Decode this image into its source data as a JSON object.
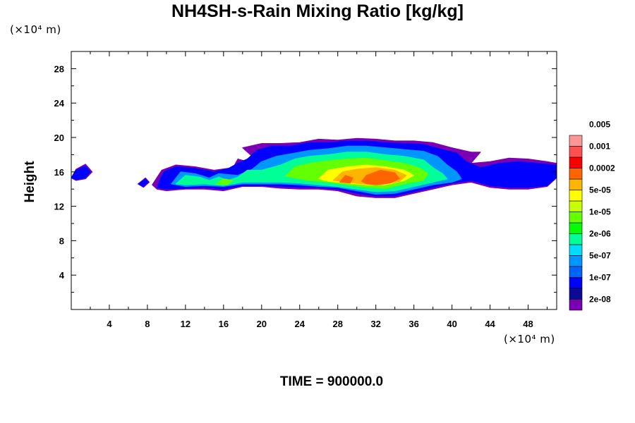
{
  "chart_data": {
    "type": "heatmap",
    "title": "NH4SH-s-Rain Mixing Ratio [kg/kg]",
    "ylabel": "Height",
    "y_unit": "(×10⁴ m)",
    "x_unit": "(×10⁴ m)",
    "footer": "TIME = 900000.0",
    "xlim": [
      0,
      51
    ],
    "ylim": [
      0,
      30
    ],
    "x_ticks": [
      "4",
      "8",
      "12",
      "16",
      "20",
      "24",
      "28",
      "32",
      "36",
      "40",
      "44",
      "48"
    ],
    "y_ticks": [
      "4",
      "8",
      "12",
      "16",
      "20",
      "24",
      "28"
    ],
    "colorbar": {
      "colors": [
        "#7b00b4",
        "#0a0a96",
        "#0000ff",
        "#0064ff",
        "#0096ff",
        "#00dcff",
        "#00ff96",
        "#00ff00",
        "#64ff00",
        "#c8ff00",
        "#ffff00",
        "#ffb400",
        "#ff6400",
        "#ff0000",
        "#ff5050",
        "#ff9696"
      ],
      "labels": [
        "2e-08",
        "1e-07",
        "5e-07",
        "2e-06",
        "1e-05",
        "5e-05",
        "0.0002",
        "0.001",
        "0.005"
      ]
    },
    "layers": [
      {
        "color": "#7b00b4",
        "level": 0,
        "polygons": [
          [
            [
              0,
              15.3
            ],
            [
              0.5,
              16.3
            ],
            [
              1.5,
              16.9
            ],
            [
              2.2,
              16.0
            ],
            [
              1.5,
              15.2
            ],
            [
              0.5,
              15.0
            ]
          ],
          [
            [
              7.0,
              14.6
            ],
            [
              7.8,
              15.3
            ],
            [
              8.2,
              14.8
            ],
            [
              7.6,
              14.2
            ]
          ],
          [
            [
              8.5,
              14.5
            ],
            [
              9.5,
              16.2
            ],
            [
              11,
              16.8
            ],
            [
              13,
              16.6
            ],
            [
              15,
              16.2
            ],
            [
              17,
              16.5
            ],
            [
              17.5,
              17.5
            ],
            [
              18.5,
              17.2
            ],
            [
              19,
              17.8
            ],
            [
              18,
              18.8
            ],
            [
              20,
              19.3
            ],
            [
              22,
              19.3
            ],
            [
              24,
              19.4
            ],
            [
              26,
              19.8
            ],
            [
              28,
              19.7
            ],
            [
              30,
              19.9
            ],
            [
              32,
              19.8
            ],
            [
              34,
              19.6
            ],
            [
              36,
              19.6
            ],
            [
              38,
              19.4
            ],
            [
              40,
              18.8
            ],
            [
              42,
              18.3
            ],
            [
              43,
              18.3
            ],
            [
              42,
              17.0
            ],
            [
              44,
              17.2
            ],
            [
              46,
              17.6
            ],
            [
              48,
              17.5
            ],
            [
              50,
              17.2
            ],
            [
              51,
              17.0
            ],
            [
              51,
              15.3
            ],
            [
              50,
              14.3
            ],
            [
              48,
              14.0
            ],
            [
              46,
              14.0
            ],
            [
              44,
              14.2
            ],
            [
              42,
              14.8
            ],
            [
              40,
              14.5
            ],
            [
              38,
              14.0
            ],
            [
              36,
              13.5
            ],
            [
              34,
              13.0
            ],
            [
              32,
              13.0
            ],
            [
              30,
              13.2
            ],
            [
              28,
              13.8
            ],
            [
              26,
              14.0
            ],
            [
              24,
              14.0
            ],
            [
              22,
              14.1
            ],
            [
              20,
              14.3
            ],
            [
              18,
              14.3
            ],
            [
              16,
              13.8
            ],
            [
              14,
              14.0
            ],
            [
              12,
              14.0
            ],
            [
              10,
              13.8
            ],
            [
              9,
              14.0
            ]
          ]
        ]
      },
      {
        "color": "#0000ff",
        "level": 2,
        "polygons": [
          [
            [
              0,
              15.3
            ],
            [
              0.5,
              16.2
            ],
            [
              1.5,
              16.7
            ],
            [
              2.0,
              16.0
            ],
            [
              1.5,
              15.3
            ],
            [
              0.5,
              15.1
            ]
          ],
          [
            [
              7.1,
              14.6
            ],
            [
              7.8,
              15.2
            ],
            [
              8.1,
              14.8
            ],
            [
              7.6,
              14.3
            ]
          ],
          [
            [
              9,
              14.2
            ],
            [
              9.7,
              16.0
            ],
            [
              11,
              16.6
            ],
            [
              13,
              16.4
            ],
            [
              15,
              16.0
            ],
            [
              16.5,
              16.4
            ],
            [
              17.5,
              17.0
            ],
            [
              18.5,
              17.5
            ],
            [
              19.5,
              18.5
            ],
            [
              21,
              19.0
            ],
            [
              23,
              19.0
            ],
            [
              25,
              19.4
            ],
            [
              27,
              19.4
            ],
            [
              29,
              19.6
            ],
            [
              31,
              19.6
            ],
            [
              33,
              19.4
            ],
            [
              35,
              19.3
            ],
            [
              37,
              19.2
            ],
            [
              39,
              18.6
            ],
            [
              40.5,
              18.2
            ],
            [
              41.5,
              17.2
            ],
            [
              43,
              16.5
            ],
            [
              45,
              17.0
            ],
            [
              47,
              17.2
            ],
            [
              49,
              17.0
            ],
            [
              51,
              16.8
            ],
            [
              51,
              15.4
            ],
            [
              50,
              14.4
            ],
            [
              48,
              14.2
            ],
            [
              46,
              14.2
            ],
            [
              44,
              14.4
            ],
            [
              42,
              15.0
            ],
            [
              40,
              14.7
            ],
            [
              38,
              14.2
            ],
            [
              36,
              13.7
            ],
            [
              34,
              13.2
            ],
            [
              32,
              13.2
            ],
            [
              30,
              13.5
            ],
            [
              28,
              14.0
            ],
            [
              26,
              14.2
            ],
            [
              24,
              14.2
            ],
            [
              22,
              14.3
            ],
            [
              20,
              14.4
            ],
            [
              18,
              14.4
            ],
            [
              16,
              14.0
            ],
            [
              14,
              14.2
            ],
            [
              12,
              14.1
            ],
            [
              10,
              14.0
            ]
          ]
        ]
      },
      {
        "color": "#0096ff",
        "level": 4,
        "polygons": [
          [
            [
              10.5,
              14.6
            ],
            [
              11.5,
              16.0
            ],
            [
              13,
              15.8
            ],
            [
              14.5,
              15.3
            ],
            [
              15.5,
              15.8
            ],
            [
              17.5,
              15.6
            ],
            [
              19,
              16.3
            ],
            [
              20,
              17.2
            ],
            [
              21.5,
              17.8
            ],
            [
              23,
              18.1
            ],
            [
              25,
              18.5
            ],
            [
              27,
              18.7
            ],
            [
              29,
              19.0
            ],
            [
              31,
              19.0
            ],
            [
              33,
              18.8
            ],
            [
              35,
              18.6
            ],
            [
              37,
              18.4
            ],
            [
              38.5,
              17.8
            ],
            [
              39.5,
              16.8
            ],
            [
              40.5,
              16.0
            ],
            [
              41,
              15.2
            ],
            [
              40,
              14.8
            ],
            [
              38,
              14.5
            ],
            [
              36,
              14.0
            ],
            [
              34,
              13.5
            ],
            [
              32,
              13.4
            ],
            [
              30,
              13.8
            ],
            [
              28,
              14.2
            ],
            [
              26,
              14.3
            ],
            [
              24,
              14.5
            ],
            [
              22,
              14.6
            ],
            [
              20,
              14.6
            ],
            [
              18,
              14.6
            ],
            [
              16,
              14.3
            ],
            [
              14,
              14.4
            ],
            [
              12,
              14.3
            ]
          ]
        ]
      },
      {
        "color": "#00ff96",
        "level": 6,
        "polygons": [
          [
            [
              11,
              14.6
            ],
            [
              12,
              15.6
            ],
            [
              13.5,
              15.4
            ],
            [
              14.5,
              15.0
            ],
            [
              15.5,
              15.4
            ],
            [
              16.5,
              15.0
            ],
            [
              17.5,
              15.4
            ],
            [
              18.5,
              16.2
            ],
            [
              20,
              16.2
            ],
            [
              22,
              16.8
            ],
            [
              23.5,
              17.5
            ],
            [
              25,
              17.8
            ],
            [
              27,
              18.0
            ],
            [
              29,
              18.3
            ],
            [
              31,
              18.3
            ],
            [
              33,
              18.0
            ],
            [
              35,
              17.8
            ],
            [
              37,
              17.4
            ],
            [
              38,
              16.5
            ],
            [
              39,
              15.8
            ],
            [
              39.5,
              15.2
            ],
            [
              38,
              14.8
            ],
            [
              36,
              14.3
            ],
            [
              34,
              13.8
            ],
            [
              32,
              13.7
            ],
            [
              30,
              14.0
            ],
            [
              28,
              14.3
            ],
            [
              26,
              14.5
            ],
            [
              24,
              14.7
            ],
            [
              22,
              14.8
            ],
            [
              20,
              14.8
            ],
            [
              18,
              14.8
            ],
            [
              16,
              14.4
            ],
            [
              14,
              14.6
            ],
            [
              12,
              14.5
            ]
          ]
        ]
      },
      {
        "color": "#64ff00",
        "level": 8,
        "polygons": [
          [
            [
              22.5,
              15.5
            ],
            [
              23.5,
              16.6
            ],
            [
              25,
              17.0
            ],
            [
              27,
              17.3
            ],
            [
              29,
              17.5
            ],
            [
              31,
              17.6
            ],
            [
              33,
              17.3
            ],
            [
              35,
              17.0
            ],
            [
              36.5,
              16.5
            ],
            [
              37.5,
              15.8
            ],
            [
              37,
              15.0
            ],
            [
              35,
              14.6
            ],
            [
              33,
              14.1
            ],
            [
              31,
              14.2
            ],
            [
              29,
              14.5
            ],
            [
              27,
              14.8
            ],
            [
              25,
              15.0
            ]
          ],
          [
            [
              15.2,
              14.6
            ],
            [
              16,
              15.2
            ],
            [
              17,
              15.0
            ],
            [
              16.4,
              14.5
            ]
          ]
        ]
      },
      {
        "color": "#ffff00",
        "level": 10,
        "polygons": [
          [
            [
              26,
              15.2
            ],
            [
              27,
              16.2
            ],
            [
              29,
              16.6
            ],
            [
              31,
              16.8
            ],
            [
              33,
              16.6
            ],
            [
              35,
              16.2
            ],
            [
              36,
              15.6
            ],
            [
              35,
              15.0
            ],
            [
              33,
              14.5
            ],
            [
              31,
              14.5
            ],
            [
              29,
              14.7
            ],
            [
              27,
              14.9
            ]
          ]
        ]
      },
      {
        "color": "#ffb400",
        "level": 11,
        "polygons": [
          [
            [
              27.5,
              15.0
            ],
            [
              28.5,
              16.0
            ],
            [
              30,
              16.3
            ],
            [
              32,
              16.5
            ],
            [
              34,
              16.2
            ],
            [
              35.2,
              15.6
            ],
            [
              34.5,
              14.9
            ],
            [
              32.5,
              14.5
            ],
            [
              30.5,
              14.6
            ],
            [
              29,
              14.8
            ]
          ]
        ]
      },
      {
        "color": "#ff6400",
        "level": 12,
        "polygons": [
          [
            [
              28.2,
              14.8
            ],
            [
              28.8,
              15.6
            ],
            [
              29.6,
              15.3
            ],
            [
              29.3,
              14.7
            ]
          ],
          [
            [
              30.5,
              14.9
            ],
            [
              31,
              15.6
            ],
            [
              32.5,
              16.2
            ],
            [
              34,
              15.9
            ],
            [
              34.5,
              15.2
            ],
            [
              33.5,
              14.7
            ],
            [
              32,
              14.5
            ],
            [
              31,
              14.6
            ]
          ]
        ]
      }
    ]
  }
}
